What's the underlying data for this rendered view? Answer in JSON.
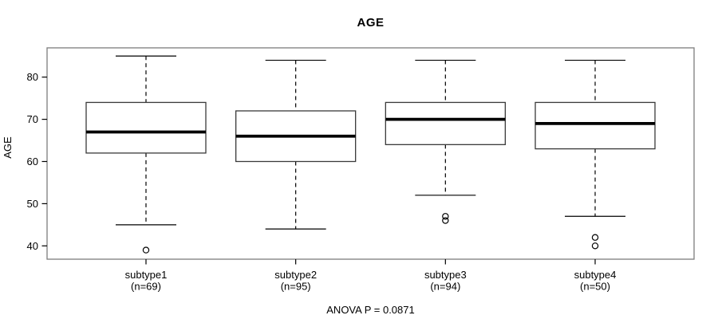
{
  "title": "AGE",
  "colors": {
    "background": "#ffffff",
    "line": "#000000",
    "box_stroke": "#3a3a3a",
    "box_fill": "#ffffff",
    "frame": "#7d7d7d"
  },
  "chart_data": {
    "type": "boxplot",
    "title": "AGE",
    "xlabel": "",
    "ylabel": "AGE",
    "annotation": "ANOVA P = 0.0871",
    "legend": null,
    "grid": false,
    "y_axis": {
      "ticks": [
        40,
        50,
        60,
        70,
        80
      ],
      "range": [
        37,
        87
      ]
    },
    "categories": [
      "subtype1",
      "subtype2",
      "subtype3",
      "subtype4"
    ],
    "counts": [
      "(n=69)",
      "(n=95)",
      "(n=94)",
      "(n=50)"
    ],
    "series": [
      {
        "name": "subtype1",
        "n": 69,
        "whisker_low": 45,
        "q1": 62,
        "median": 67,
        "q3": 74,
        "whisker_high": 85,
        "outliers": [
          39
        ]
      },
      {
        "name": "subtype2",
        "n": 95,
        "whisker_low": 44,
        "q1": 60,
        "median": 66,
        "q3": 72,
        "whisker_high": 84,
        "outliers": []
      },
      {
        "name": "subtype3",
        "n": 94,
        "whisker_low": 52,
        "q1": 64,
        "median": 70,
        "q3": 74,
        "whisker_high": 84,
        "outliers": [
          47,
          46
        ]
      },
      {
        "name": "subtype4",
        "n": 50,
        "whisker_low": 47,
        "q1": 63,
        "median": 69,
        "q3": 74,
        "whisker_high": 84,
        "outliers": [
          42,
          40
        ]
      }
    ]
  }
}
